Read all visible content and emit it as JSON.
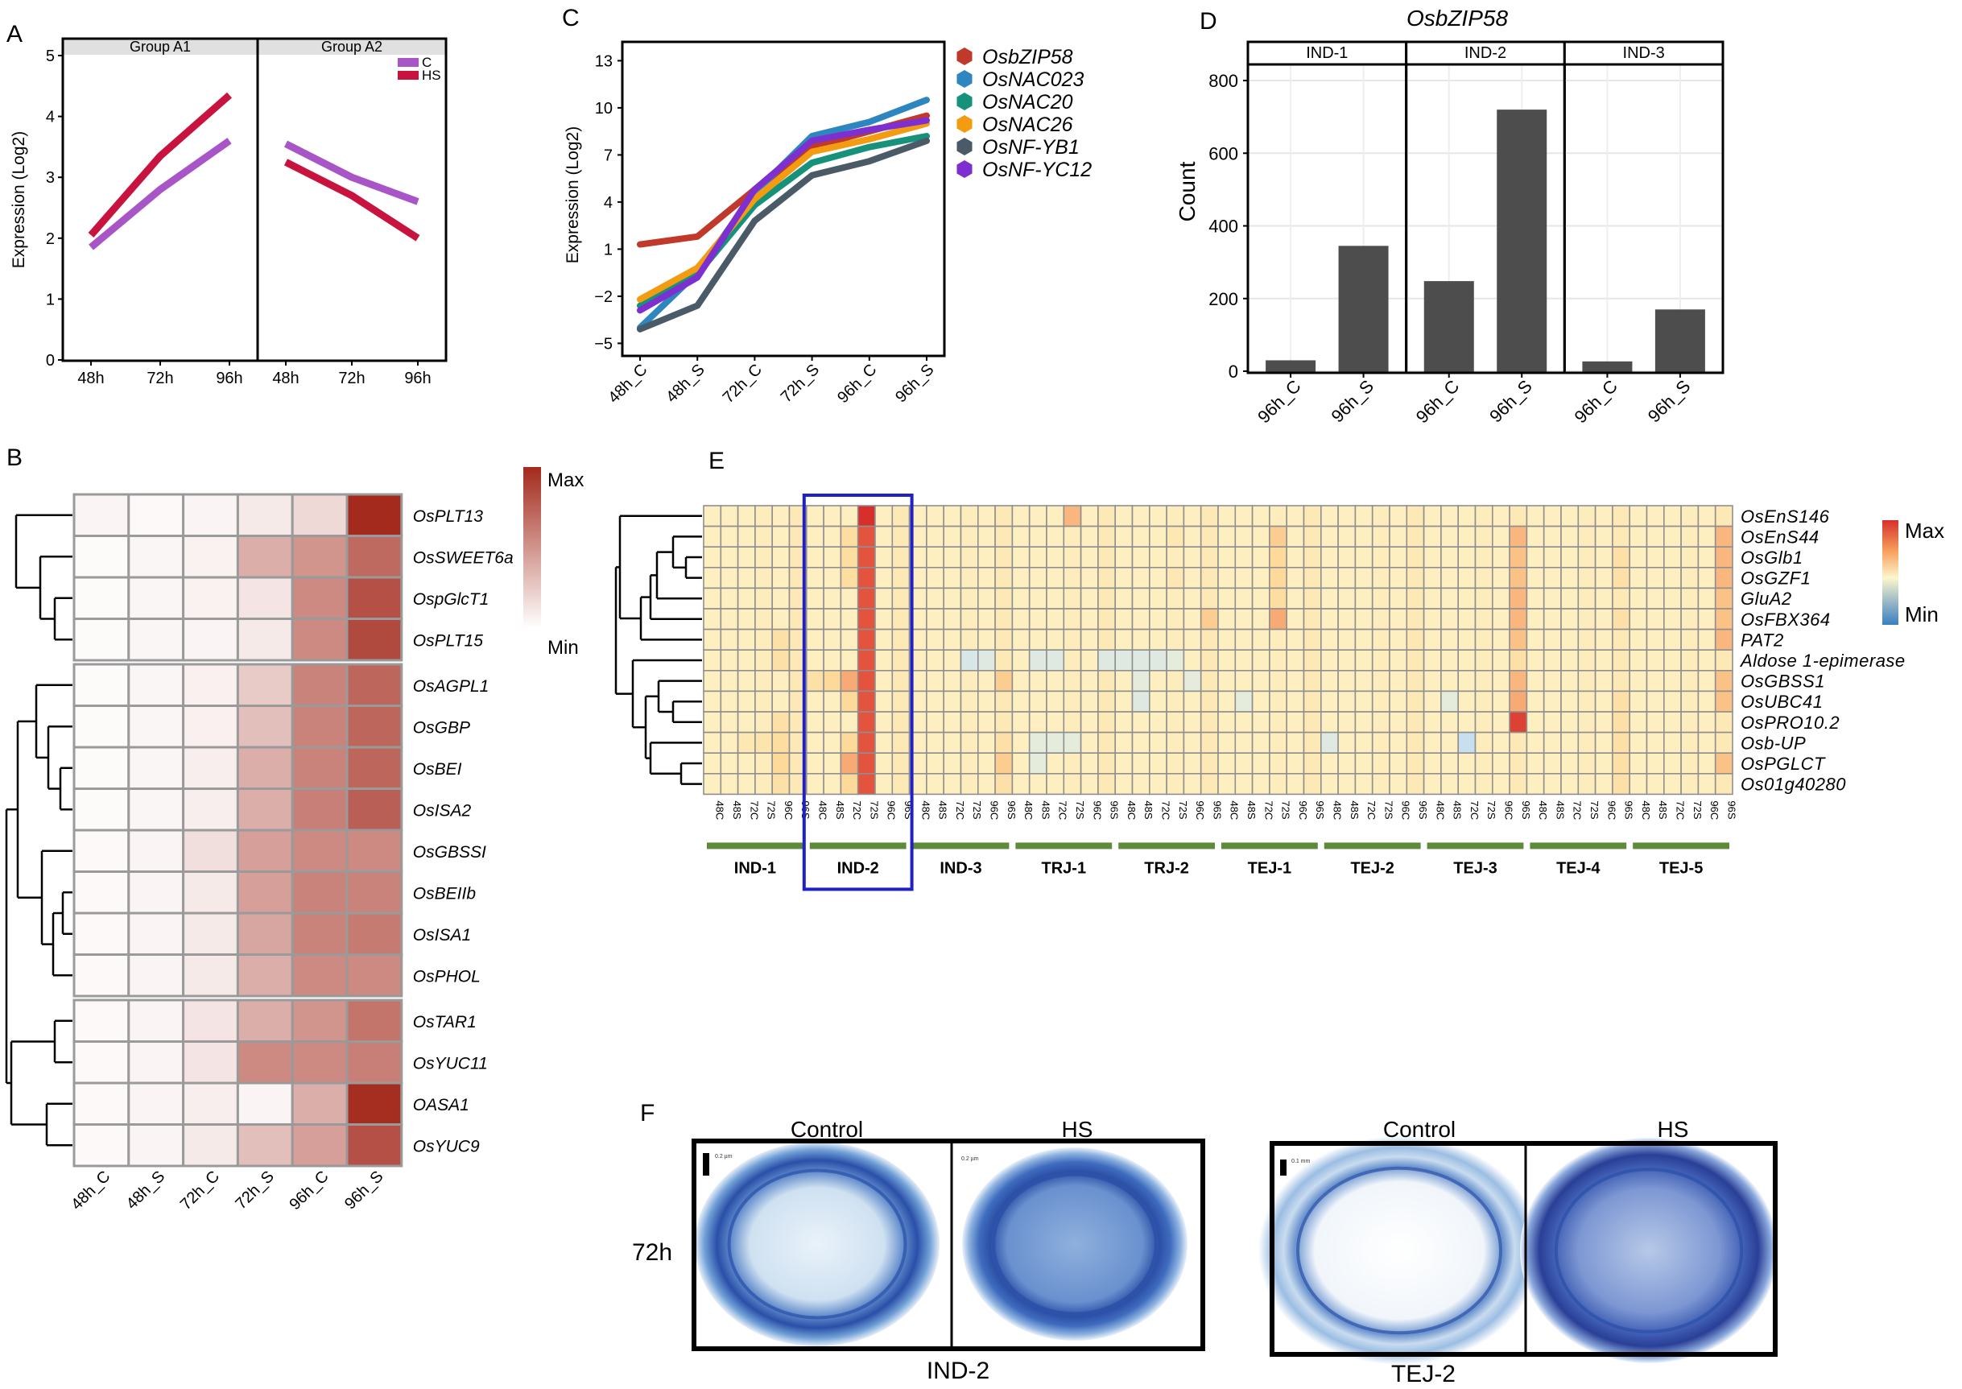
{
  "chart_data": [
    {
      "panel": "A",
      "type": "line",
      "ylabel": "Expression (Log2)",
      "ylim": [
        0,
        5.2
      ],
      "yticks": [
        "0",
        "1",
        "2",
        "3",
        "4",
        "5"
      ],
      "facets": [
        "Group A1",
        "Group A2"
      ],
      "categories": [
        "48h",
        "72h",
        "96h"
      ],
      "legend": [
        "C",
        "HS"
      ],
      "series": [
        {
          "name": "C",
          "color": "#a855c7",
          "facet": "Group A1",
          "values": [
            1.85,
            2.8,
            3.6
          ]
        },
        {
          "name": "HS",
          "color": "#c8133f",
          "facet": "Group A1",
          "values": [
            2.05,
            3.35,
            4.35
          ]
        },
        {
          "name": "C",
          "color": "#a855c7",
          "facet": "Group A2",
          "values": [
            3.55,
            3.0,
            2.6
          ]
        },
        {
          "name": "HS",
          "color": "#c8133f",
          "facet": "Group A2",
          "values": [
            3.25,
            2.7,
            2.0
          ]
        }
      ]
    },
    {
      "panel": "B",
      "type": "heatmap",
      "columns": [
        "48h_C",
        "48h_S",
        "72h_C",
        "72h_S",
        "96h_C",
        "96h_S"
      ],
      "rows": [
        "OsPLT13",
        "OsSWEET6a",
        "OspGlcT1",
        "OsPLT15",
        "OsAGPL1",
        "OsGBP",
        "OsBEI",
        "OsISA2",
        "OsGBSSI",
        "OsBEIIb",
        "OsISA1",
        "OsPHOL",
        "OsTAR1",
        "OsYUC11",
        "OASA1",
        "OsYUC9"
      ],
      "values": [
        [
          0.05,
          0.03,
          0.05,
          0.1,
          0.18,
          1.0
        ],
        [
          0.02,
          0.04,
          0.06,
          0.38,
          0.5,
          0.7
        ],
        [
          0.02,
          0.04,
          0.06,
          0.12,
          0.55,
          0.82
        ],
        [
          0.02,
          0.04,
          0.05,
          0.1,
          0.55,
          0.85
        ],
        [
          0.02,
          0.04,
          0.07,
          0.25,
          0.58,
          0.72
        ],
        [
          0.02,
          0.04,
          0.07,
          0.3,
          0.58,
          0.72
        ],
        [
          0.02,
          0.04,
          0.08,
          0.38,
          0.58,
          0.72
        ],
        [
          0.02,
          0.04,
          0.08,
          0.38,
          0.6,
          0.75
        ],
        [
          0.03,
          0.05,
          0.15,
          0.45,
          0.55,
          0.55
        ],
        [
          0.03,
          0.05,
          0.1,
          0.45,
          0.58,
          0.58
        ],
        [
          0.03,
          0.05,
          0.1,
          0.42,
          0.58,
          0.62
        ],
        [
          0.03,
          0.05,
          0.1,
          0.38,
          0.55,
          0.55
        ],
        [
          0.03,
          0.05,
          0.12,
          0.38,
          0.5,
          0.65
        ],
        [
          0.03,
          0.05,
          0.12,
          0.55,
          0.55,
          0.6
        ],
        [
          0.03,
          0.05,
          0.08,
          0.05,
          0.38,
          0.98
        ],
        [
          0.03,
          0.05,
          0.1,
          0.3,
          0.45,
          0.82
        ]
      ],
      "dendrogram": {
        "groups": [
          [
            0,
            3
          ],
          [
            4,
            11
          ],
          [
            12,
            15
          ]
        ]
      },
      "legend": {
        "max_label": "Max",
        "min_label": "Min",
        "max_color": "#b5453a",
        "min_color": "#ffffff"
      }
    },
    {
      "panel": "C",
      "type": "line",
      "ylabel": "Expression (Log2)",
      "ylim": [
        -5.8,
        14.2
      ],
      "yticks": [
        -5,
        -2,
        1,
        4,
        7,
        10,
        13
      ],
      "categories": [
        "48h_C",
        "48h_S",
        "72h_C",
        "72h_S",
        "96h_C",
        "96h_S"
      ],
      "series": [
        {
          "name": "OsbZIP58",
          "color": "#c0392b",
          "values": [
            1.3,
            1.8,
            4.8,
            7.5,
            8.5,
            9.5
          ]
        },
        {
          "name": "OsNAC023",
          "color": "#2e86c1",
          "values": [
            -4.0,
            -0.5,
            4.6,
            8.2,
            9.1,
            10.5
          ]
        },
        {
          "name": "OsNAC20",
          "color": "#16917a",
          "values": [
            -2.6,
            -0.6,
            3.8,
            6.5,
            7.5,
            8.2
          ]
        },
        {
          "name": "OsNAC26",
          "color": "#f39c12",
          "values": [
            -2.2,
            -0.2,
            4.2,
            7.2,
            8.0,
            9.0
          ]
        },
        {
          "name": "OsNF-YB1",
          "color": "#4a5a67",
          "values": [
            -4.1,
            -2.6,
            2.8,
            5.7,
            6.6,
            7.9
          ]
        },
        {
          "name": "OsNF-YC12",
          "color": "#7d2fd0",
          "values": [
            -2.9,
            -0.8,
            4.8,
            7.9,
            8.6,
            9.2
          ]
        }
      ]
    },
    {
      "panel": "D",
      "type": "bar",
      "title": "OsbZIP58",
      "ylabel": "Count",
      "ylim": [
        0,
        840
      ],
      "yticks": [
        0,
        200,
        400,
        600,
        800
      ],
      "facets": [
        {
          "name": "IND-1",
          "categories": [
            "96h_C",
            "96h_S"
          ],
          "values": [
            30,
            345
          ]
        },
        {
          "name": "IND-2",
          "categories": [
            "96h_C",
            "96h_S"
          ],
          "values": [
            248,
            720
          ]
        },
        {
          "name": "IND-3",
          "categories": [
            "96h_C",
            "96h_S"
          ],
          "values": [
            27,
            170
          ]
        }
      ]
    },
    {
      "panel": "E",
      "type": "heatmap",
      "rows": [
        "OsEnS146",
        "OsEnS44",
        "OsGlb1",
        "OsGZF1",
        "GluA2",
        "OsFBX364",
        "PAT2",
        "Aldose 1-epimerase",
        "OsGBSS1",
        "OsUBC41",
        "OsPRO10.2",
        "Osb-UP",
        "OsPGLCT",
        "Os01g40280"
      ],
      "column_labels": [
        "48C",
        "48S",
        "72C",
        "72S",
        "96C",
        "96S"
      ],
      "varieties": [
        "IND-1",
        "IND-2",
        "IND-3",
        "TRJ-1",
        "TRJ-2",
        "TEJ-1",
        "TEJ-2",
        "TEJ-3",
        "TEJ-4",
        "TEJ-5"
      ],
      "highlight": "IND-2",
      "hot_cells": [
        [
          0,
          9,
          1.0
        ],
        [
          1,
          9,
          0.9
        ],
        [
          2,
          9,
          0.9
        ],
        [
          3,
          9,
          0.9
        ],
        [
          4,
          9,
          0.9
        ],
        [
          5,
          9,
          0.9
        ],
        [
          6,
          9,
          0.9
        ],
        [
          7,
          9,
          0.9
        ],
        [
          8,
          9,
          0.9
        ],
        [
          9,
          9,
          0.9
        ],
        [
          10,
          9,
          0.9
        ],
        [
          11,
          9,
          0.9
        ],
        [
          12,
          9,
          0.9
        ],
        [
          13,
          9,
          0.9
        ],
        [
          0,
          21,
          0.55
        ],
        [
          1,
          33,
          0.45
        ],
        [
          2,
          33,
          0.4
        ],
        [
          3,
          33,
          0.4
        ],
        [
          5,
          33,
          0.6
        ],
        [
          5,
          29,
          0.45
        ],
        [
          4,
          33,
          0.35
        ],
        [
          1,
          47,
          0.55
        ],
        [
          2,
          47,
          0.5
        ],
        [
          3,
          47,
          0.5
        ],
        [
          4,
          47,
          0.55
        ],
        [
          5,
          47,
          0.55
        ],
        [
          6,
          47,
          0.5
        ],
        [
          8,
          47,
          0.55
        ],
        [
          9,
          47,
          0.6
        ],
        [
          10,
          47,
          0.95
        ],
        [
          7,
          47,
          0.3
        ],
        [
          1,
          59,
          0.55
        ],
        [
          2,
          59,
          0.55
        ],
        [
          3,
          59,
          0.55
        ],
        [
          4,
          59,
          0.5
        ],
        [
          5,
          59,
          0.5
        ],
        [
          6,
          59,
          0.55
        ],
        [
          8,
          59,
          0.5
        ],
        [
          9,
          59,
          0.5
        ],
        [
          12,
          59,
          0.5
        ],
        [
          1,
          8,
          0.35
        ],
        [
          2,
          8,
          0.35
        ],
        [
          3,
          8,
          0.35
        ],
        [
          8,
          8,
          0.6
        ],
        [
          9,
          8,
          0.4
        ],
        [
          11,
          8,
          0.4
        ],
        [
          12,
          8,
          0.6
        ],
        [
          13,
          8,
          0.4
        ],
        [
          8,
          7,
          0.4
        ],
        [
          8,
          6,
          0.3
        ],
        [
          11,
          3,
          0.25
        ],
        [
          11,
          2,
          0.2
        ],
        [
          6,
          4,
          0.3
        ],
        [
          7,
          4,
          0.3
        ],
        [
          10,
          4,
          0.3
        ],
        [
          11,
          4,
          0.35
        ],
        [
          12,
          4,
          0.4
        ],
        [
          13,
          4,
          0.3
        ],
        [
          8,
          17,
          0.45
        ],
        [
          12,
          17,
          0.45
        ],
        [
          13,
          17,
          0.3
        ],
        [
          11,
          17,
          0.3
        ],
        [
          2,
          53,
          0.3
        ],
        [
          3,
          53,
          0.3
        ],
        [
          5,
          53,
          0.3
        ],
        [
          9,
          53,
          0.3
        ],
        [
          10,
          53,
          0.3
        ],
        [
          11,
          53,
          0.3
        ],
        [
          12,
          53,
          0.3
        ],
        [
          13,
          53,
          0.3
        ],
        [
          6,
          41,
          0.2
        ],
        [
          1,
          27,
          0.2
        ],
        [
          3,
          27,
          0.2
        ]
      ],
      "cool_cells": [
        [
          7,
          15,
          -0.25
        ],
        [
          7,
          16,
          -0.2
        ],
        [
          7,
          19,
          -0.2
        ],
        [
          7,
          20,
          -0.2
        ],
        [
          7,
          23,
          -0.2
        ],
        [
          7,
          24,
          -0.2
        ],
        [
          7,
          25,
          -0.2
        ],
        [
          7,
          26,
          -0.2
        ],
        [
          7,
          27,
          -0.15
        ],
        [
          8,
          25,
          -0.15
        ],
        [
          9,
          25,
          -0.2
        ],
        [
          11,
          44,
          -0.35
        ],
        [
          9,
          43,
          -0.15
        ],
        [
          11,
          36,
          -0.2
        ],
        [
          12,
          19,
          -0.15
        ],
        [
          11,
          19,
          -0.15
        ],
        [
          8,
          28,
          -0.15
        ],
        [
          9,
          31,
          -0.15
        ],
        [
          11,
          20,
          -0.15
        ],
        [
          11,
          21,
          -0.15
        ]
      ],
      "legend": {
        "max_label": "Max",
        "min_label": "Min"
      }
    }
  ],
  "panel_labels": {
    "a": "A",
    "b": "B",
    "c": "C",
    "d": "D",
    "e": "E",
    "f": "F"
  },
  "micrographs": {
    "timepoint": "72h",
    "left": {
      "group": "IND-2",
      "conditions": [
        "Control",
        "HS"
      ]
    },
    "right": {
      "group": "TEJ-2",
      "conditions": [
        "Control",
        "HS"
      ]
    },
    "scale_labels": [
      "0.2 µm",
      "0.2 µm",
      "0.1 mm"
    ]
  }
}
